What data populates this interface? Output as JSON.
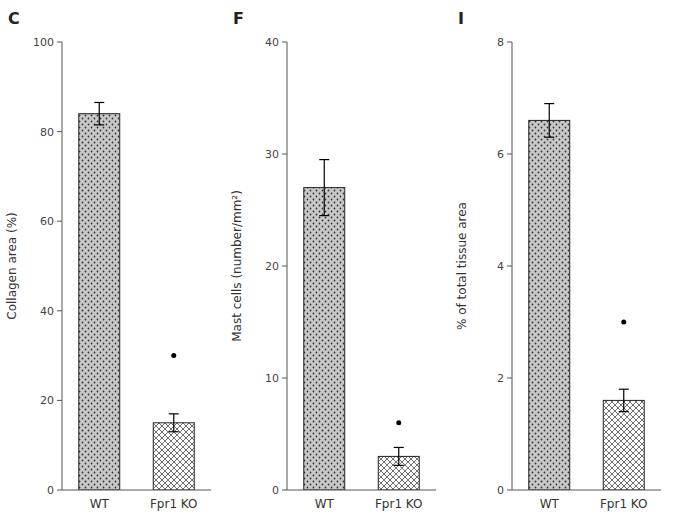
{
  "chart_data": [
    {
      "type": "bar",
      "title": "C",
      "ylabel": "Collagen area (%)",
      "categories": [
        "WT",
        "Fpr1 KO"
      ],
      "values": [
        84,
        15
      ],
      "errors": [
        2.5,
        2.0
      ],
      "outliers": [
        null,
        30
      ],
      "colors": [
        "#c8c8c8",
        "#ffffff"
      ],
      "ylim": [
        0,
        100
      ],
      "yticks": [
        0,
        20,
        40,
        60,
        80,
        100
      ],
      "grid": false
    },
    {
      "type": "bar",
      "title": "F",
      "ylabel": "Mast cells (number/mm²)",
      "categories": [
        "WT",
        "Fpr1 KO"
      ],
      "values": [
        27,
        3
      ],
      "errors": [
        2.5,
        0.8
      ],
      "outliers": [
        null,
        6
      ],
      "colors": [
        "#c8c8c8",
        "#ffffff"
      ],
      "ylim": [
        0,
        40
      ],
      "yticks": [
        0,
        10,
        20,
        30,
        40
      ],
      "grid": false
    },
    {
      "type": "bar",
      "title": "I",
      "ylabel": "% of total tissue area",
      "categories": [
        "WT",
        "Fpr1 KO"
      ],
      "values": [
        6.6,
        1.6
      ],
      "errors": [
        0.3,
        0.2
      ],
      "outliers": [
        null,
        3.0
      ],
      "colors": [
        "#c8c8c8",
        "#ffffff"
      ],
      "ylim": [
        0,
        8
      ],
      "yticks": [
        0,
        2,
        4,
        6,
        8
      ],
      "grid": false
    }
  ]
}
